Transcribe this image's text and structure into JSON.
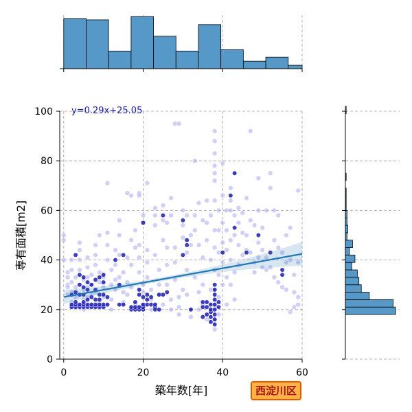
{
  "region_label": "西淀川区",
  "chart_data": {
    "type": "scatter",
    "xlabel": "築年数[年]",
    "ylabel": "専有面積[m2]",
    "equation": "y=0.29x+25.05",
    "xlim": [
      -1,
      60
    ],
    "ylim": [
      0,
      100
    ],
    "xticks": [
      0,
      20,
      40,
      60
    ],
    "yticks": [
      0,
      20,
      40,
      60,
      80,
      100
    ],
    "grid": true,
    "regression": {
      "slope": 0.29,
      "intercept": 25.05
    },
    "colors": {
      "points": "#9a9aeb",
      "points_dense": "#1c1cb0",
      "bars": "#5699c8",
      "line": "#1f77b4",
      "equation": "#1a1aaa"
    },
    "x_histogram": {
      "bin_edges": [
        0,
        5.65,
        11.3,
        16.95,
        22.6,
        28.25,
        33.9,
        39.55,
        45.2,
        50.85,
        56.5,
        60
      ],
      "counts": [
        74,
        72,
        26,
        77,
        48,
        26,
        65,
        28,
        11,
        17,
        5
      ]
    },
    "y_histogram": {
      "bin_edges": [
        18,
        21,
        24,
        27,
        30,
        33,
        36,
        39,
        42,
        45,
        48,
        51,
        54,
        57,
        60,
        63,
        66,
        69,
        72,
        75,
        78,
        81,
        84,
        87,
        90,
        93,
        96,
        99,
        102
      ],
      "counts": [
        63,
        60,
        30,
        20,
        17,
        15,
        8,
        12,
        5,
        9,
        2,
        3,
        2,
        2,
        1,
        1,
        1,
        0,
        1,
        0,
        0,
        0,
        0,
        0,
        0,
        0,
        0,
        1
      ]
    },
    "points_light": [
      [
        0,
        50
      ],
      [
        0,
        48
      ],
      [
        0,
        40
      ],
      [
        1,
        26
      ],
      [
        1,
        30
      ],
      [
        1,
        33
      ],
      [
        1,
        35
      ],
      [
        1,
        29
      ],
      [
        2,
        21
      ],
      [
        2,
        23
      ],
      [
        2,
        27
      ],
      [
        2,
        31
      ],
      [
        2,
        36
      ],
      [
        2,
        40
      ],
      [
        3,
        33
      ],
      [
        3,
        29
      ],
      [
        3,
        25
      ],
      [
        4,
        47
      ],
      [
        4,
        44
      ],
      [
        4,
        40
      ],
      [
        4,
        36
      ],
      [
        5,
        32
      ],
      [
        5,
        28
      ],
      [
        5,
        24
      ],
      [
        5,
        20
      ],
      [
        6,
        41
      ],
      [
        6,
        37
      ],
      [
        6,
        33
      ],
      [
        6,
        29
      ],
      [
        6,
        25
      ],
      [
        7,
        22
      ],
      [
        7,
        26
      ],
      [
        7,
        30
      ],
      [
        7,
        34
      ],
      [
        8,
        38
      ],
      [
        8,
        42
      ],
      [
        8,
        46
      ],
      [
        8,
        27
      ],
      [
        9,
        23
      ],
      [
        9,
        31
      ],
      [
        9,
        35
      ],
      [
        9,
        50
      ],
      [
        10,
        33
      ],
      [
        10,
        29
      ],
      [
        10,
        25
      ],
      [
        10,
        21
      ],
      [
        11,
        71
      ],
      [
        11,
        40
      ],
      [
        11,
        46
      ],
      [
        11,
        51
      ],
      [
        12,
        36
      ],
      [
        12,
        30
      ],
      [
        12,
        24
      ],
      [
        12,
        20
      ],
      [
        13,
        44
      ],
      [
        13,
        38
      ],
      [
        13,
        32
      ],
      [
        13,
        28
      ],
      [
        14,
        56
      ],
      [
        14,
        50
      ],
      [
        14,
        42
      ],
      [
        14,
        33
      ],
      [
        15,
        27
      ],
      [
        15,
        23
      ],
      [
        15,
        35
      ],
      [
        16,
        67
      ],
      [
        16,
        41
      ],
      [
        16,
        31
      ],
      [
        16,
        26
      ],
      [
        17,
        66
      ],
      [
        17,
        48
      ],
      [
        17,
        38
      ],
      [
        17,
        29
      ],
      [
        18,
        22
      ],
      [
        18,
        20
      ],
      [
        18,
        52
      ],
      [
        18,
        45
      ],
      [
        19,
        67
      ],
      [
        19,
        66
      ],
      [
        19,
        46
      ],
      [
        19,
        41
      ],
      [
        19,
        35
      ],
      [
        20,
        30
      ],
      [
        20,
        58
      ],
      [
        20,
        55
      ],
      [
        20,
        27
      ],
      [
        21,
        71
      ],
      [
        21,
        44
      ],
      [
        21,
        39
      ],
      [
        21,
        33
      ],
      [
        22,
        28
      ],
      [
        22,
        24
      ],
      [
        22,
        20
      ],
      [
        23,
        61
      ],
      [
        23,
        58
      ],
      [
        23,
        54
      ],
      [
        23,
        42
      ],
      [
        24,
        36
      ],
      [
        24,
        30
      ],
      [
        24,
        26
      ],
      [
        25,
        22
      ],
      [
        25,
        56
      ],
      [
        25,
        48
      ],
      [
        25,
        62
      ],
      [
        26,
        55
      ],
      [
        26,
        45
      ],
      [
        26,
        38
      ],
      [
        26,
        30
      ],
      [
        27,
        24
      ],
      [
        27,
        20
      ],
      [
        27,
        58
      ],
      [
        27,
        65
      ],
      [
        28,
        95
      ],
      [
        28,
        45
      ],
      [
        28,
        39
      ],
      [
        28,
        32
      ],
      [
        29,
        25
      ],
      [
        29,
        21
      ],
      [
        29,
        18
      ],
      [
        29,
        95
      ],
      [
        30,
        60
      ],
      [
        30,
        54
      ],
      [
        30,
        49
      ],
      [
        30,
        28
      ],
      [
        31,
        58
      ],
      [
        31,
        43
      ],
      [
        31,
        36
      ],
      [
        31,
        26
      ],
      [
        32,
        20
      ],
      [
        32,
        17
      ],
      [
        32,
        50
      ],
      [
        32,
        46
      ],
      [
        33,
        80
      ],
      [
        33,
        58
      ],
      [
        33,
        52
      ],
      [
        33,
        33
      ],
      [
        34,
        27
      ],
      [
        34,
        20
      ],
      [
        34,
        63
      ],
      [
        34,
        46
      ],
      [
        35,
        56
      ],
      [
        35,
        41
      ],
      [
        35,
        30
      ],
      [
        35,
        22
      ],
      [
        36,
        16
      ],
      [
        36,
        64
      ],
      [
        36,
        55
      ],
      [
        36,
        48
      ],
      [
        37,
        58
      ],
      [
        37,
        40
      ],
      [
        37,
        28
      ],
      [
        37,
        19
      ],
      [
        38,
        92
      ],
      [
        38,
        88
      ],
      [
        38,
        83
      ],
      [
        38,
        78
      ],
      [
        38,
        75
      ],
      [
        38,
        72
      ],
      [
        38,
        64
      ],
      [
        38,
        52
      ],
      [
        38,
        45
      ],
      [
        38,
        36
      ],
      [
        38,
        28
      ],
      [
        38,
        22
      ],
      [
        38,
        16
      ],
      [
        38,
        12
      ],
      [
        39,
        60
      ],
      [
        39,
        52
      ],
      [
        39,
        43
      ],
      [
        39,
        34
      ],
      [
        39,
        25
      ],
      [
        39,
        18
      ],
      [
        40,
        79
      ],
      [
        40,
        66
      ],
      [
        40,
        55
      ],
      [
        40,
        47
      ],
      [
        40,
        39
      ],
      [
        40,
        30
      ],
      [
        41,
        60
      ],
      [
        41,
        52
      ],
      [
        41,
        44
      ],
      [
        41,
        33
      ],
      [
        41,
        22
      ],
      [
        42,
        69
      ],
      [
        42,
        64
      ],
      [
        42,
        60
      ],
      [
        42,
        48
      ],
      [
        42,
        40
      ],
      [
        42,
        30
      ],
      [
        43,
        75
      ],
      [
        43,
        58
      ],
      [
        43,
        50
      ],
      [
        43,
        35
      ],
      [
        43,
        24
      ],
      [
        44,
        61
      ],
      [
        44,
        55
      ],
      [
        44,
        46
      ],
      [
        44,
        38
      ],
      [
        45,
        59
      ],
      [
        45,
        51
      ],
      [
        45,
        42
      ],
      [
        46,
        65
      ],
      [
        46,
        50
      ],
      [
        46,
        44
      ],
      [
        47,
        92
      ],
      [
        47,
        56
      ],
      [
        47,
        43
      ],
      [
        48,
        54
      ],
      [
        48,
        39
      ],
      [
        48,
        35
      ],
      [
        49,
        73
      ],
      [
        49,
        60
      ],
      [
        49,
        47
      ],
      [
        49,
        41
      ],
      [
        50,
        53
      ],
      [
        50,
        44
      ],
      [
        50,
        37
      ],
      [
        51,
        60
      ],
      [
        51,
        41
      ],
      [
        51,
        36
      ],
      [
        52,
        75
      ],
      [
        52,
        69
      ],
      [
        52,
        37
      ],
      [
        53,
        60
      ],
      [
        53,
        48
      ],
      [
        53,
        33
      ],
      [
        54,
        58
      ],
      [
        54,
        45
      ],
      [
        54,
        31
      ],
      [
        55,
        43
      ],
      [
        55,
        29
      ],
      [
        56,
        50
      ],
      [
        56,
        39
      ],
      [
        56,
        28
      ],
      [
        57,
        53
      ],
      [
        57,
        40
      ],
      [
        57,
        19
      ],
      [
        58,
        34
      ],
      [
        58,
        27
      ],
      [
        58,
        21
      ],
      [
        59,
        68
      ],
      [
        59,
        39
      ],
      [
        59,
        25
      ],
      [
        59,
        22
      ]
    ],
    "points_dense": [
      [
        2,
        21
      ],
      [
        2,
        22
      ],
      [
        2,
        26
      ],
      [
        3,
        21
      ],
      [
        3,
        22
      ],
      [
        3,
        23
      ],
      [
        3,
        27
      ],
      [
        3,
        42
      ],
      [
        4,
        21
      ],
      [
        4,
        22
      ],
      [
        4,
        26
      ],
      [
        4,
        30
      ],
      [
        4,
        34
      ],
      [
        5,
        21
      ],
      [
        5,
        22
      ],
      [
        5,
        23
      ],
      [
        5,
        26
      ],
      [
        5,
        29
      ],
      [
        5,
        33
      ],
      [
        6,
        21
      ],
      [
        6,
        22
      ],
      [
        6,
        24
      ],
      [
        6,
        28
      ],
      [
        6,
        31
      ],
      [
        7,
        21
      ],
      [
        7,
        22
      ],
      [
        7,
        25
      ],
      [
        7,
        30
      ],
      [
        8,
        21
      ],
      [
        8,
        22
      ],
      [
        8,
        24
      ],
      [
        8,
        28
      ],
      [
        8,
        32
      ],
      [
        9,
        21
      ],
      [
        9,
        22
      ],
      [
        9,
        24
      ],
      [
        9,
        26
      ],
      [
        9,
        33
      ],
      [
        10,
        21
      ],
      [
        10,
        22
      ],
      [
        10,
        26
      ],
      [
        10,
        31
      ],
      [
        10,
        34
      ],
      [
        11,
        22
      ],
      [
        11,
        25
      ],
      [
        13,
        40
      ],
      [
        14,
        22
      ],
      [
        14,
        30
      ],
      [
        15,
        22
      ],
      [
        15,
        42
      ],
      [
        17,
        20
      ],
      [
        17,
        21
      ],
      [
        18,
        20
      ],
      [
        18,
        21
      ],
      [
        18,
        23
      ],
      [
        19,
        20
      ],
      [
        19,
        21
      ],
      [
        19,
        26
      ],
      [
        19,
        28
      ],
      [
        20,
        20
      ],
      [
        20,
        21
      ],
      [
        20,
        22
      ],
      [
        20,
        25
      ],
      [
        20,
        55
      ],
      [
        21,
        22
      ],
      [
        21,
        24
      ],
      [
        21,
        26
      ],
      [
        22,
        22
      ],
      [
        22,
        25
      ],
      [
        23,
        21
      ],
      [
        23,
        22
      ],
      [
        23,
        20
      ],
      [
        24,
        20
      ],
      [
        24,
        26
      ],
      [
        25,
        26
      ],
      [
        25,
        58
      ],
      [
        26,
        27
      ],
      [
        30,
        56
      ],
      [
        30,
        42
      ],
      [
        31,
        46
      ],
      [
        31,
        48
      ],
      [
        32,
        20
      ],
      [
        35,
        17
      ],
      [
        35,
        21
      ],
      [
        35,
        23
      ],
      [
        36,
        18
      ],
      [
        36,
        21
      ],
      [
        36,
        23
      ],
      [
        37,
        15
      ],
      [
        37,
        17
      ],
      [
        37,
        19
      ],
      [
        37,
        20
      ],
      [
        37,
        22
      ],
      [
        38,
        14
      ],
      [
        38,
        16
      ],
      [
        38,
        18
      ],
      [
        38,
        20
      ],
      [
        38,
        22
      ],
      [
        38,
        24
      ],
      [
        38,
        26
      ],
      [
        38,
        28
      ],
      [
        38,
        30
      ],
      [
        39,
        21
      ],
      [
        39,
        23
      ],
      [
        40,
        43
      ],
      [
        42,
        66
      ],
      [
        43,
        75
      ],
      [
        43,
        53
      ],
      [
        46,
        43
      ],
      [
        49,
        50
      ],
      [
        52,
        43
      ],
      [
        55,
        34
      ],
      [
        55,
        36
      ]
    ]
  }
}
